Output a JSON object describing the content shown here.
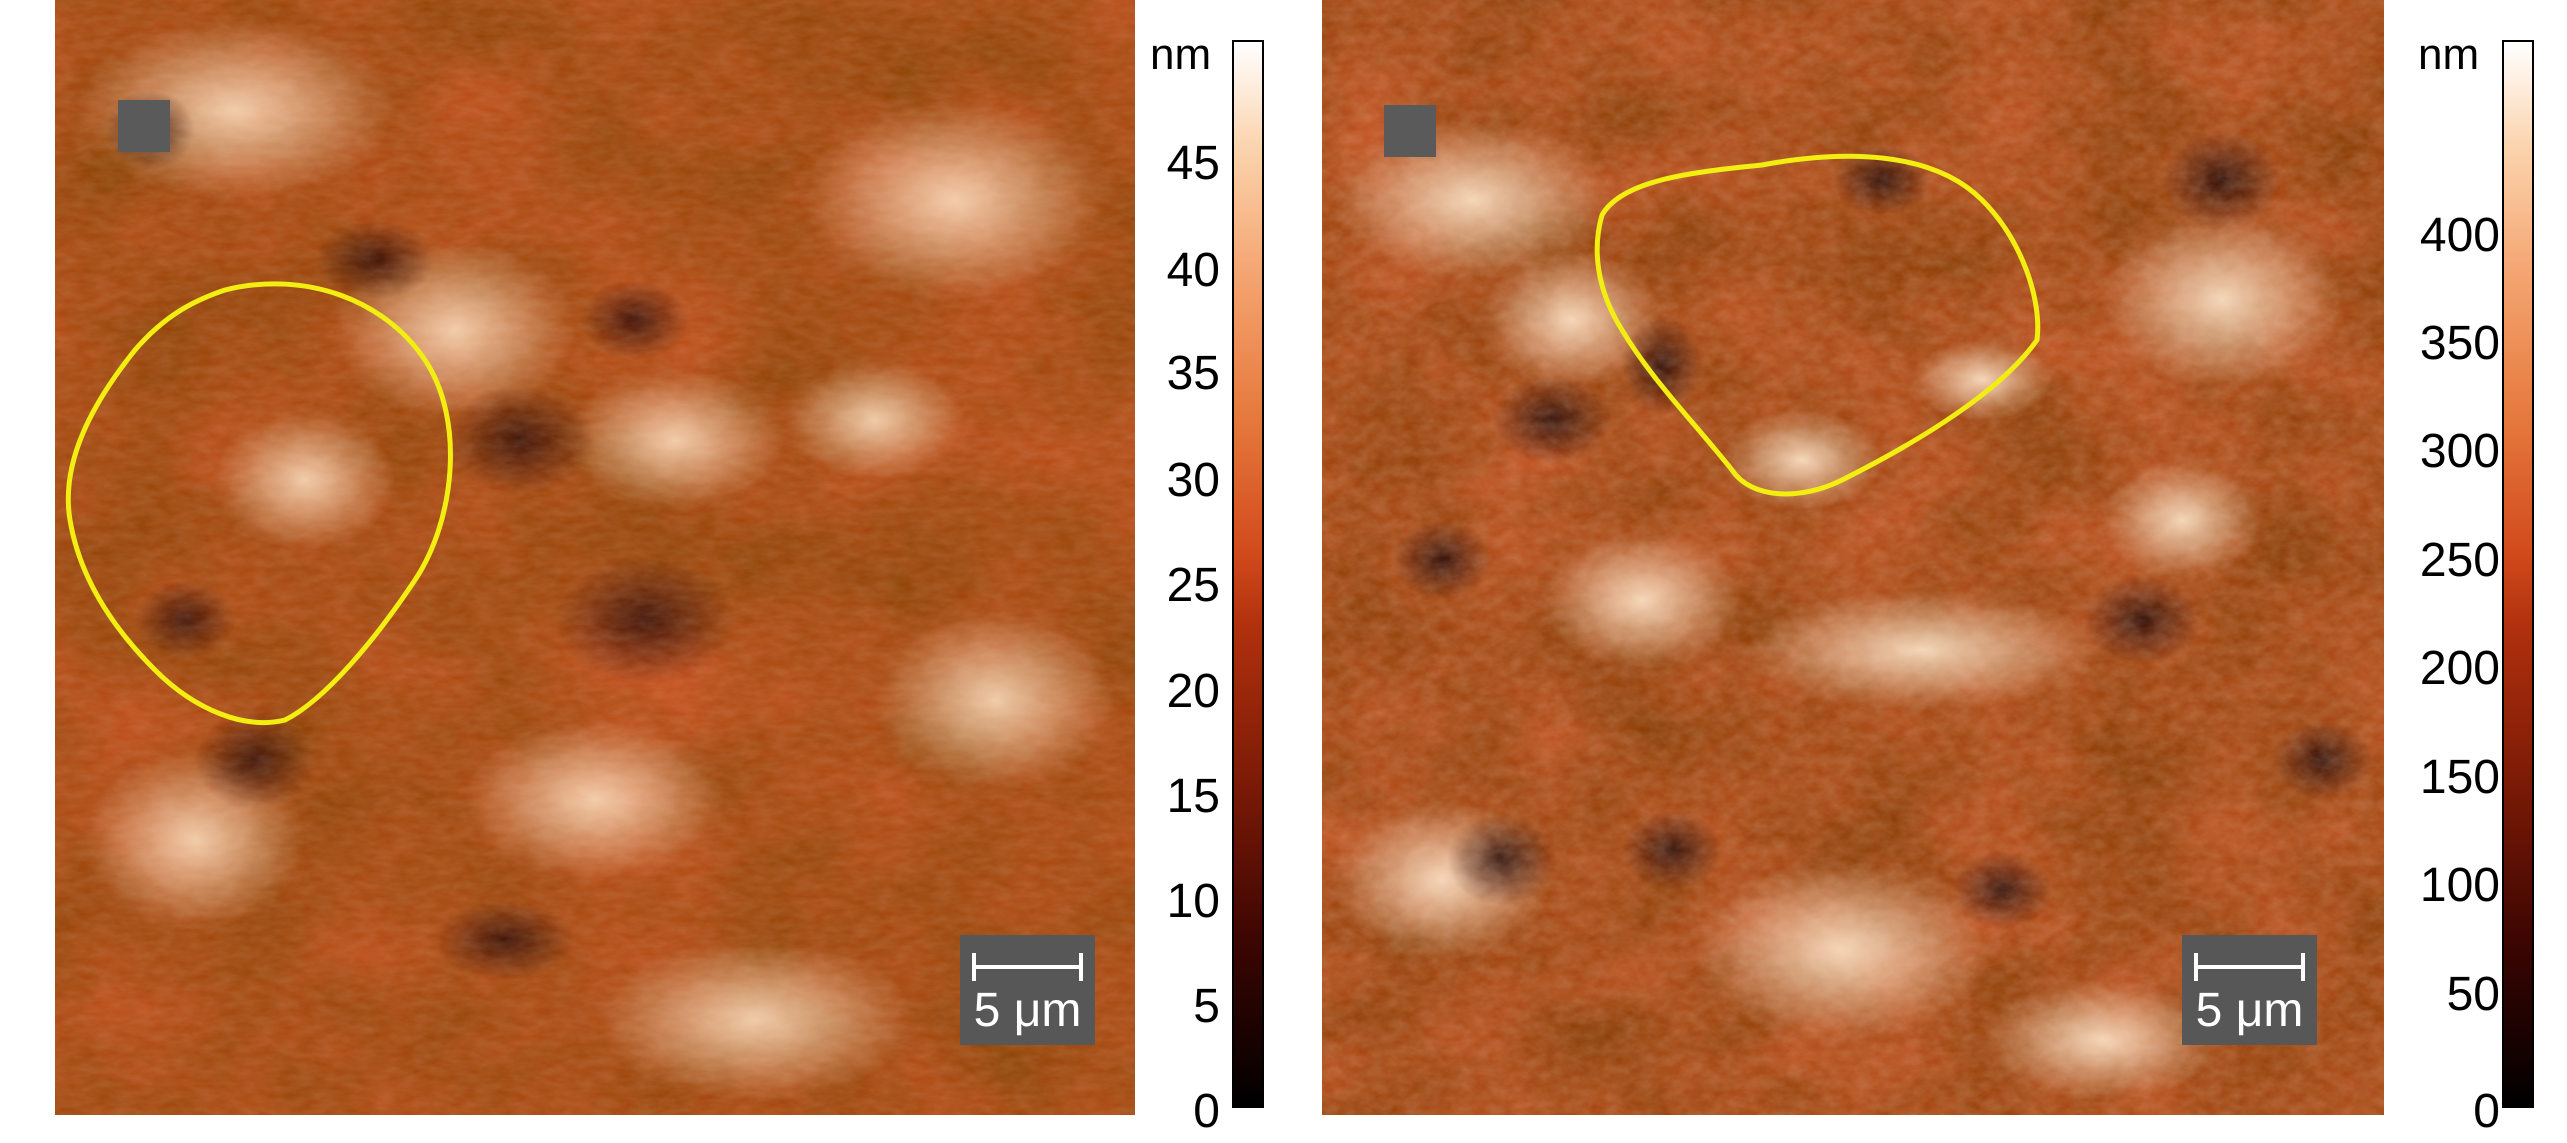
{
  "panels": [
    {
      "id": "left",
      "scale_label": "5 μm",
      "colorbar": {
        "unit": "nm",
        "ticks": [
          "45",
          "40",
          "35",
          "30",
          "25",
          "20",
          "15",
          "10",
          "5",
          "0"
        ]
      }
    },
    {
      "id": "right",
      "scale_label": "5 μm",
      "colorbar": {
        "unit": "nm",
        "ticks": [
          "400",
          "350",
          "300",
          "250",
          "200",
          "150",
          "100",
          "50",
          "0"
        ]
      }
    }
  ],
  "colors": {
    "afm_base": "#c24a1a",
    "afm_dark": "#3a0a02",
    "afm_light": "#fbd6b0",
    "outline": "#f2ee12",
    "scalebar_bg": "#575757"
  }
}
